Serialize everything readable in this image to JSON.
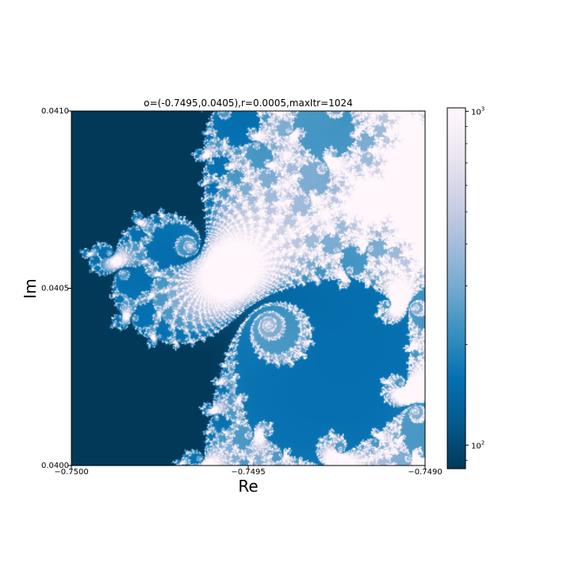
{
  "chart_data": {
    "type": "heatmap",
    "title": "o=(-0.7495,0.0405),r=0.0005,maxItr=1024",
    "xlabel": "Re",
    "ylabel": "Im",
    "xlim": [
      -0.75,
      -0.749
    ],
    "ylim": [
      0.04,
      0.041
    ],
    "x_ticks": [
      {
        "value": -0.75,
        "label": "−0.7500"
      },
      {
        "value": -0.7495,
        "label": "−0.7495"
      },
      {
        "value": -0.749,
        "label": "−0.7490"
      }
    ],
    "y_ticks": [
      {
        "value": 0.04,
        "label": "0.0400"
      },
      {
        "value": 0.0405,
        "label": "0.0405"
      },
      {
        "value": 0.041,
        "label": "0.0410"
      }
    ],
    "center": [
      -0.7495,
      0.0405
    ],
    "radius": 0.0005,
    "max_iterations": 1024,
    "colorbar": {
      "scale": "log",
      "range": [
        85,
        1024
      ],
      "colormap": "PuBu_r",
      "ticks": [
        {
          "value": 100,
          "base": "10",
          "exp": "2"
        },
        {
          "value": 1000,
          "base": "10",
          "exp": "3"
        }
      ],
      "colors": [
        "#023858",
        "#045a8d",
        "#0570b0",
        "#3690c0",
        "#74a9cf",
        "#a6bddb",
        "#d0d1e6",
        "#ece7f2",
        "#fff7fb"
      ]
    },
    "grid": false
  }
}
